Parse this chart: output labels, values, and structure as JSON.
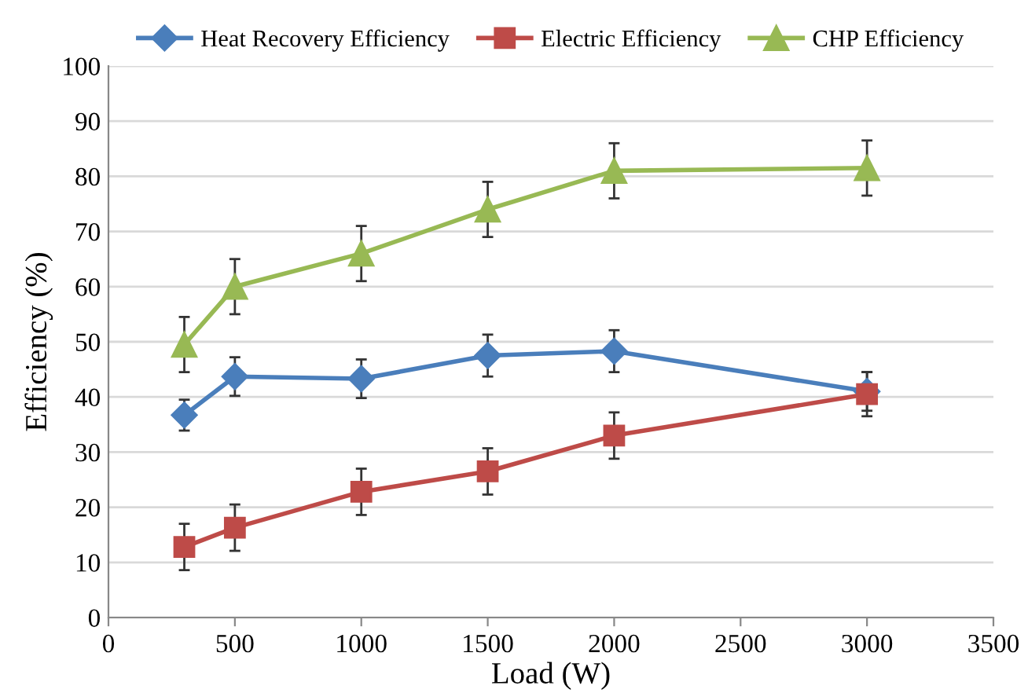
{
  "chart_data": {
    "type": "line",
    "xlabel": "Load (W)",
    "ylabel": "Efficiency (%)",
    "x": [
      300,
      500,
      1000,
      1500,
      2000,
      3000
    ],
    "series": [
      {
        "name": "Heat Recovery Efficiency",
        "color": "#4a7ebb",
        "marker": "diamond",
        "values": [
          36.7,
          43.7,
          43.3,
          47.5,
          48.3,
          41.0
        ],
        "errors": [
          2.8,
          3.5,
          3.5,
          3.8,
          3.8,
          3.5
        ]
      },
      {
        "name": "Electric Efficiency",
        "color": "#be4b48",
        "marker": "square",
        "values": [
          12.8,
          16.3,
          22.8,
          26.5,
          33.0,
          40.5
        ],
        "errors": [
          4.2,
          4.2,
          4.2,
          4.2,
          4.2,
          4.0
        ]
      },
      {
        "name": "CHP Efficiency",
        "color": "#98b954",
        "marker": "triangle",
        "values": [
          49.5,
          60.0,
          66.0,
          74.0,
          81.0,
          81.5
        ],
        "errors": [
          5.0,
          5.0,
          5.0,
          5.0,
          5.0,
          5.0
        ]
      }
    ],
    "xlim": [
      0,
      3500
    ],
    "xticks": [
      0,
      500,
      1000,
      1500,
      2000,
      2500,
      3000,
      3500
    ],
    "ylim": [
      0,
      100
    ],
    "yticks": [
      0,
      10,
      20,
      30,
      40,
      50,
      60,
      70,
      80,
      90,
      100
    ],
    "grid": "y",
    "legend": "top"
  }
}
